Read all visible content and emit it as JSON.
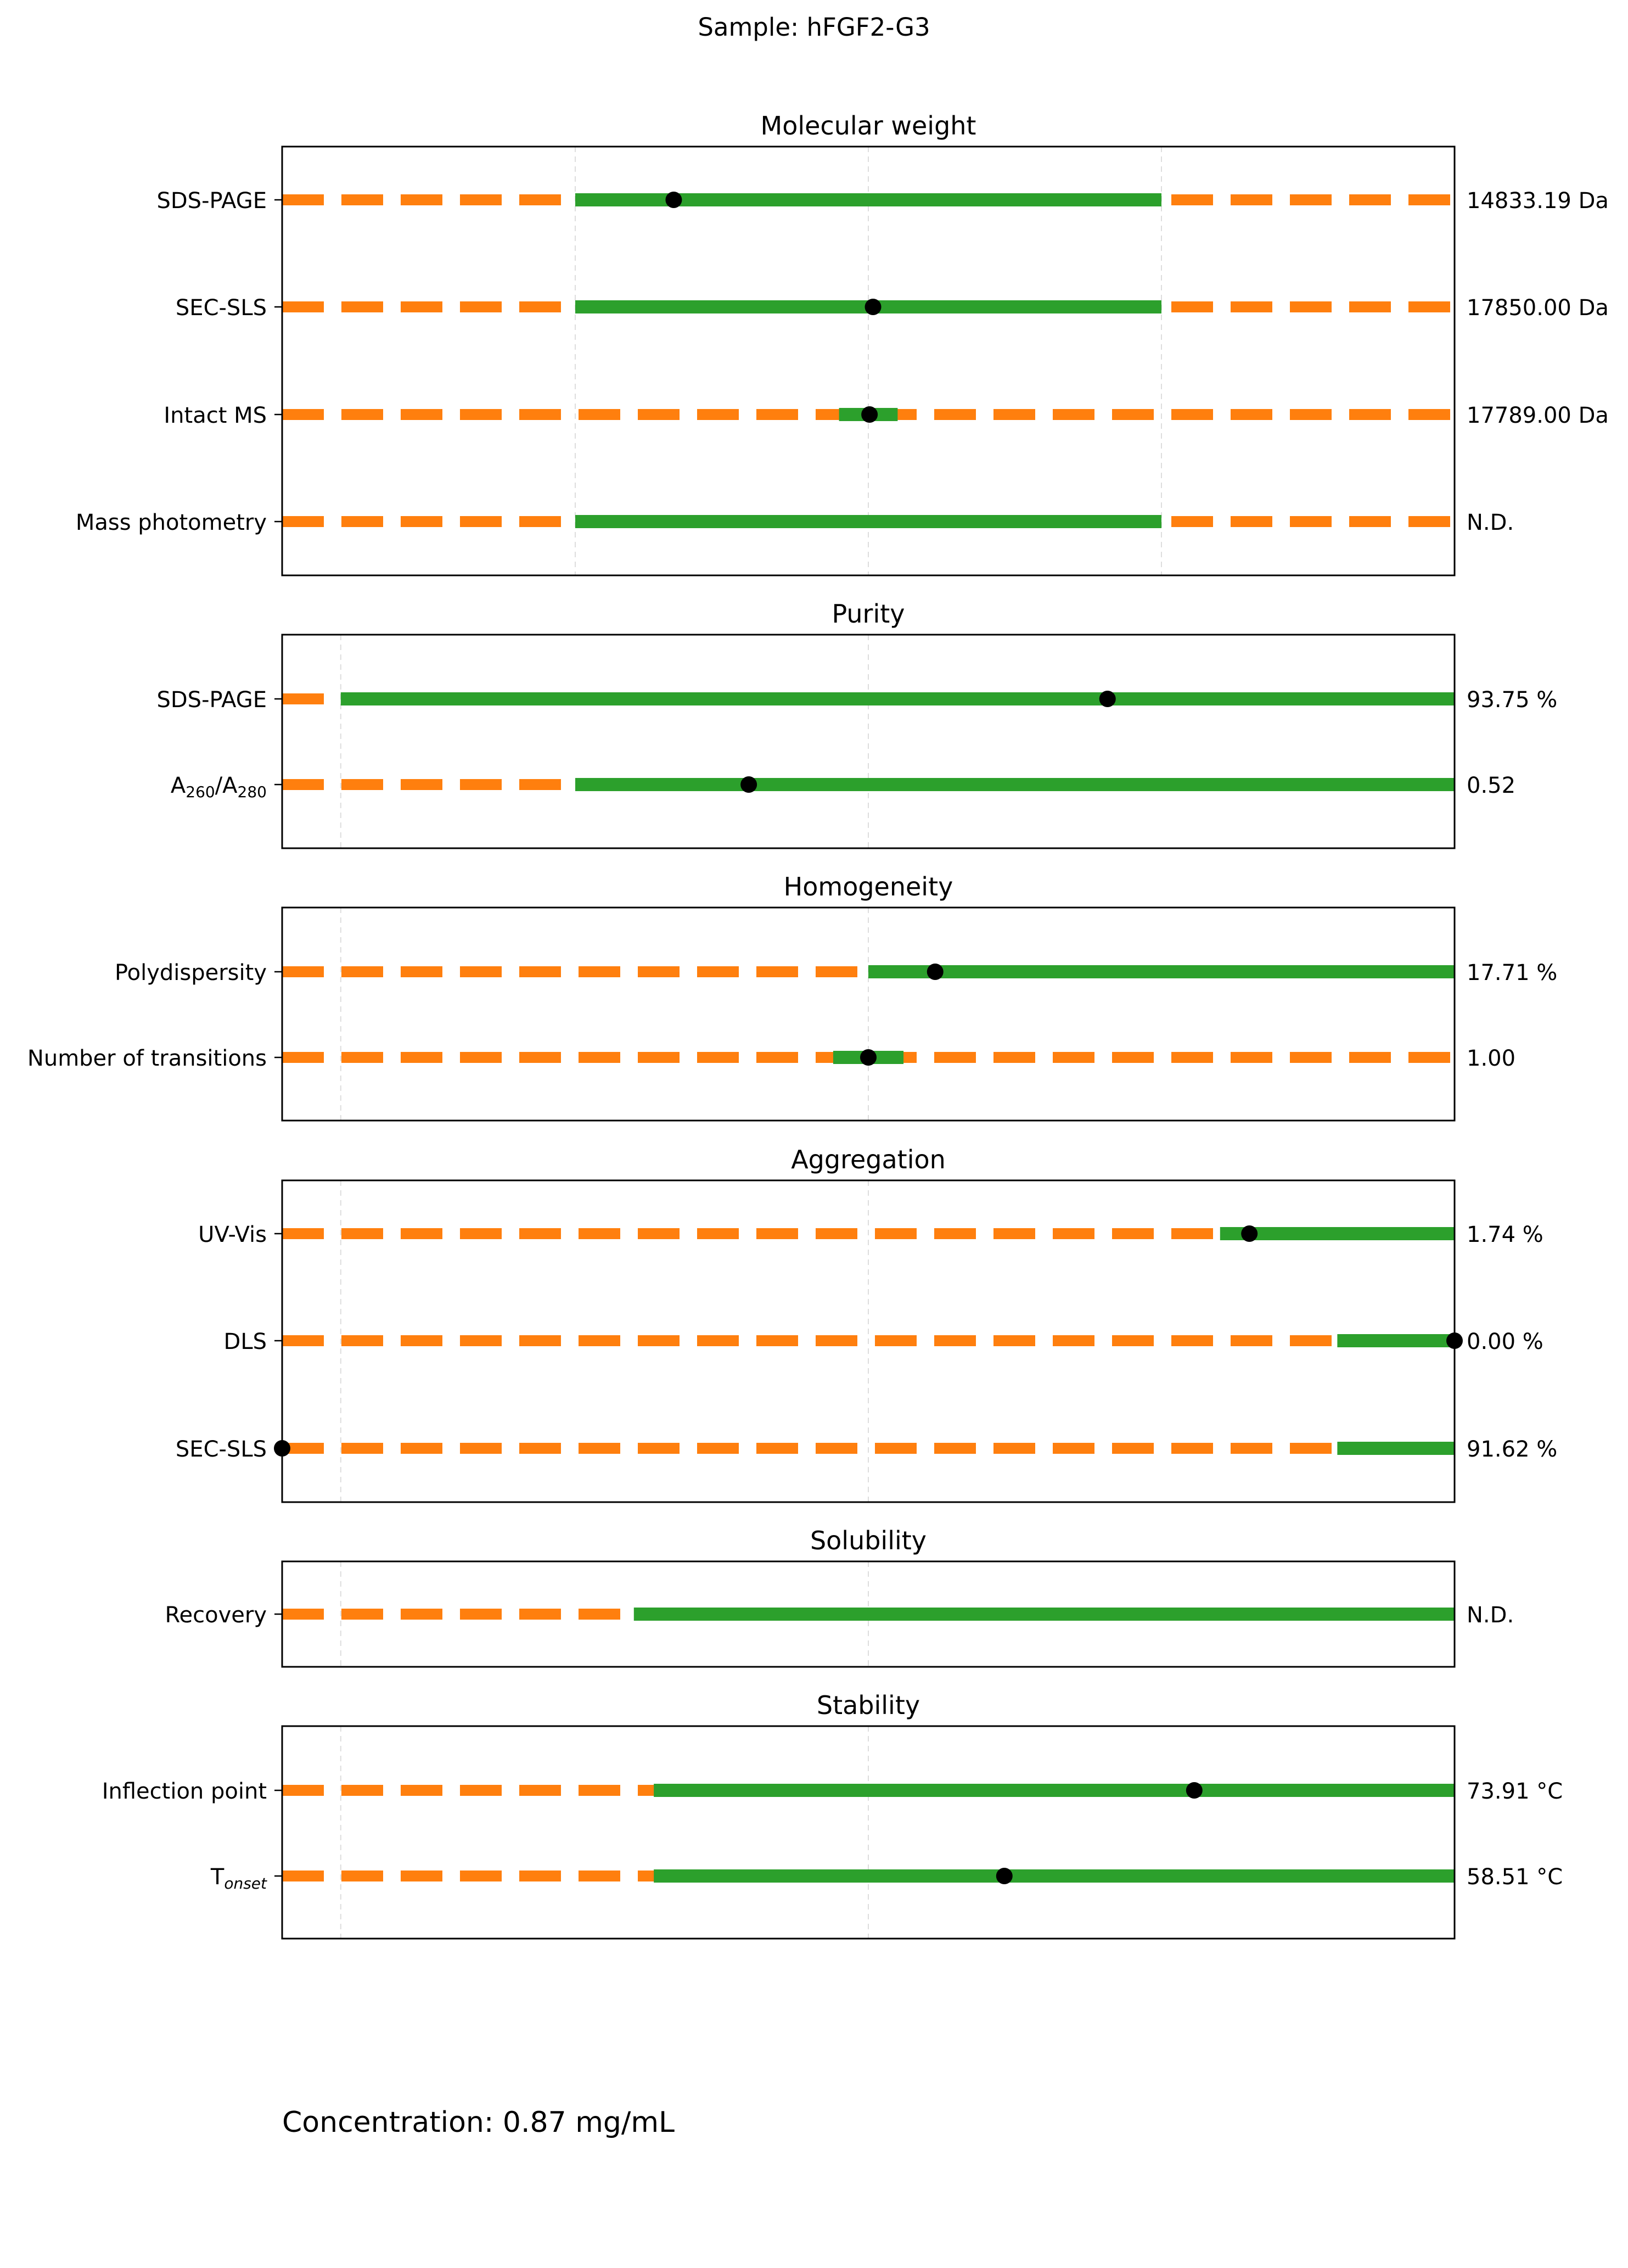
{
  "sample_title": "Sample: hFGF2-G3",
  "concentration_text": "Concentration: 0.87 mg/mL",
  "colors": {
    "acceptable": "#2ca02c",
    "out_of_range": "#ff7f0e",
    "value_marker": "#000000",
    "grid": "#dddddd",
    "frame": "#000000"
  },
  "chart_data": [
    {
      "type": "range",
      "title": "Molecular weight",
      "grid": "vertical dashed",
      "xlim": [
        0,
        1
      ],
      "rows": [
        {
          "label": "SDS-PAGE",
          "range": [
            0.25,
            0.75
          ],
          "value": 0.334,
          "annotation": "14833.19 Da"
        },
        {
          "label": "SEC-SLS",
          "range": [
            0.25,
            0.75
          ],
          "value": 0.504,
          "annotation": "17850.00 Da"
        },
        {
          "label": "Intact MS",
          "range": [
            0.475,
            0.525
          ],
          "value": 0.501,
          "annotation": "17789.00 Da"
        },
        {
          "label": "Mass photometry",
          "range": [
            0.25,
            0.75
          ],
          "value": null,
          "annotation": "N.D."
        }
      ]
    },
    {
      "type": "range",
      "title": "Purity",
      "grid": "vertical dashed",
      "xlim": [
        0,
        1
      ],
      "rows": [
        {
          "label": "SDS-PAGE",
          "range": [
            0.05,
            1.0
          ],
          "value": 0.704,
          "annotation": "93.75 %"
        },
        {
          "label": "A",
          "label_sub": "260",
          "label_mid": "/A",
          "label_sub2": "280",
          "range": [
            0.25,
            1.0
          ],
          "value": 0.398,
          "annotation": "0.52"
        }
      ]
    },
    {
      "type": "range",
      "title": "Homogeneity",
      "grid": "vertical dashed",
      "xlim": [
        0,
        1
      ],
      "rows": [
        {
          "label": "Polydispersity",
          "range": [
            0.5,
            1.0
          ],
          "value": 0.557,
          "annotation": "17.71 %"
        },
        {
          "label": "Number of transitions",
          "range": [
            0.47,
            0.53
          ],
          "value": 0.5,
          "annotation": "1.00"
        }
      ]
    },
    {
      "type": "range",
      "title": "Aggregation",
      "grid": "vertical dashed",
      "xlim": [
        0,
        1
      ],
      "rows": [
        {
          "label": "UV-Vis",
          "range": [
            0.8,
            1.0
          ],
          "value": 0.825,
          "annotation": "1.74 %"
        },
        {
          "label": "DLS",
          "range": [
            0.9,
            1.0
          ],
          "value": 1.0,
          "annotation": "0.00 %"
        },
        {
          "label": "SEC-SLS",
          "range": [
            0.9,
            1.0
          ],
          "value": 0.0,
          "annotation": "91.62 %"
        }
      ]
    },
    {
      "type": "range",
      "title": "Solubility",
      "grid": "vertical dashed",
      "xlim": [
        0,
        1
      ],
      "rows": [
        {
          "label": "Recovery",
          "range": [
            0.3,
            1.0
          ],
          "value": null,
          "annotation": "N.D."
        }
      ]
    },
    {
      "type": "range",
      "title": "Stability",
      "grid": "vertical dashed",
      "xlim": [
        0,
        1
      ],
      "rows": [
        {
          "label": "Inflection point",
          "range": [
            0.317,
            1.0
          ],
          "value": 0.778,
          "annotation": "73.91 °C"
        },
        {
          "label": "T",
          "label_sub": "onset",
          "range": [
            0.317,
            1.0
          ],
          "value": 0.616,
          "annotation": "58.51 °C"
        }
      ]
    }
  ]
}
